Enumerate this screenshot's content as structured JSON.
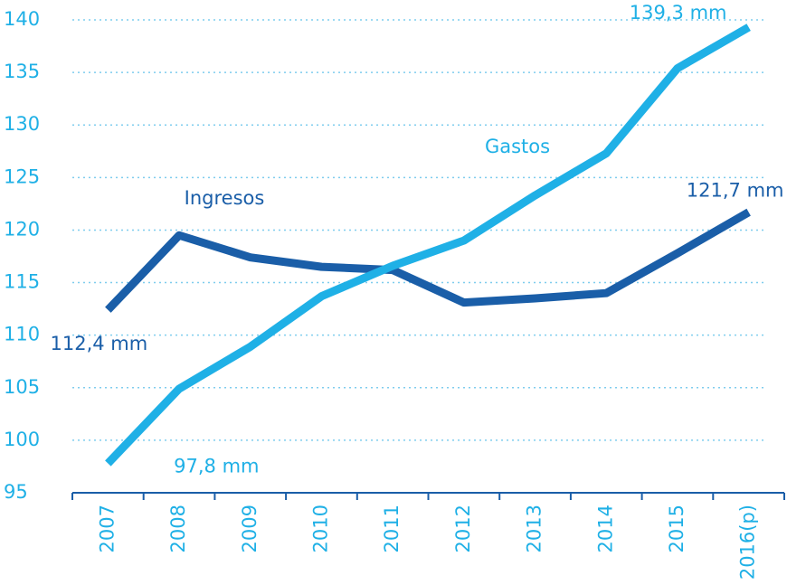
{
  "chart_data": {
    "type": "line",
    "categories": [
      "2007",
      "2008",
      "2009",
      "2010",
      "2011",
      "2012",
      "2013",
      "2014",
      "2015",
      "2016(p)"
    ],
    "series": [
      {
        "name": "Ingresos",
        "color": "#1a5ea8",
        "values": [
          112.4,
          119.5,
          117.4,
          116.5,
          116.2,
          113.1,
          113.5,
          114.0,
          117.8,
          121.7
        ],
        "value_labels": [
          "112,4 mm",
          null,
          null,
          null,
          null,
          null,
          null,
          null,
          null,
          "121,7 mm"
        ]
      },
      {
        "name": "Gastos",
        "color": "#1fb0e6",
        "values": [
          97.8,
          104.9,
          108.9,
          113.7,
          116.6,
          119.0,
          123.3,
          127.3,
          135.4,
          139.3
        ],
        "value_labels": [
          "97,8 mm",
          null,
          null,
          null,
          null,
          null,
          null,
          null,
          null,
          "139,3 mm"
        ]
      }
    ],
    "ylim": [
      95,
      140
    ],
    "yticks": [
      95,
      100,
      105,
      110,
      115,
      120,
      125,
      130,
      135,
      140
    ],
    "grid": true
  }
}
